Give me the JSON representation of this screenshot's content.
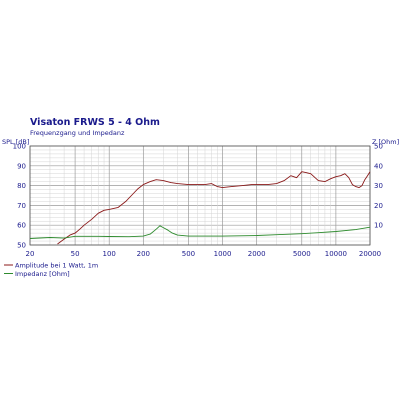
{
  "chart_data": {
    "type": "line",
    "title": "Visaton FRWS 5 - 4 Ohm",
    "subtitle": "Frequenzgang und Impedanz",
    "ylabel_left": "SPL [dB]",
    "ylabel_right": "Z [Ohm]",
    "x_scale": "log",
    "xlim": [
      20,
      20000
    ],
    "ylim_left": [
      50,
      100
    ],
    "ylim_right": [
      0,
      50
    ],
    "x_ticks": [
      20,
      50,
      100,
      200,
      500,
      1000,
      2000,
      5000,
      10000,
      20000
    ],
    "x_tick_labels": [
      "20",
      "50",
      "100",
      "200",
      "500",
      "1000",
      "2000",
      "5000",
      "10000",
      "20000"
    ],
    "y_left_ticks": [
      50,
      60,
      70,
      80,
      90,
      100
    ],
    "y_right_ticks": [
      10,
      20,
      30,
      40,
      50
    ],
    "grid": true,
    "legend_position": "bottom-left",
    "series": [
      {
        "name": "Amplitude bei 1 Watt, 1m",
        "axis": "left",
        "color": "#8b1a1a",
        "x": [
          35,
          40,
          45,
          50,
          55,
          60,
          70,
          80,
          90,
          100,
          120,
          140,
          160,
          180,
          200,
          230,
          260,
          300,
          350,
          400,
          500,
          600,
          700,
          800,
          900,
          1000,
          1200,
          1500,
          1800,
          2000,
          2500,
          3000,
          3500,
          4000,
          4500,
          5000,
          5500,
          6000,
          7000,
          8000,
          9000,
          10000,
          11000,
          12000,
          13000,
          14000,
          15000,
          16000,
          17000,
          18000,
          19000,
          20000
        ],
        "values": [
          50.5,
          53,
          55,
          56,
          58,
          60,
          63,
          66,
          67.5,
          68,
          69,
          72,
          75.5,
          78.5,
          80.5,
          82,
          83,
          82.5,
          81.5,
          81,
          80.5,
          80.5,
          80.5,
          81,
          79.5,
          79,
          79.5,
          80,
          80.5,
          80.5,
          80.5,
          81,
          82.5,
          85,
          84,
          87,
          86.5,
          86,
          82.5,
          82,
          83.5,
          84.5,
          85,
          86,
          84,
          80.5,
          79.5,
          79,
          80,
          83,
          85,
          87
        ]
      },
      {
        "name": "Impedanz [Ohm]",
        "axis": "right",
        "color": "#2e8b2e",
        "x": [
          20,
          30,
          40,
          50,
          60,
          80,
          100,
          150,
          200,
          230,
          260,
          280,
          300,
          330,
          360,
          400,
          500,
          700,
          1000,
          2000,
          3000,
          5000,
          7000,
          10000,
          15000,
          20000
        ],
        "values": [
          3.3,
          3.8,
          3.5,
          4.4,
          4.4,
          4.4,
          4.3,
          4.2,
          4.5,
          5.5,
          8,
          9.7,
          8.8,
          7.5,
          6,
          5,
          4.5,
          4.5,
          4.5,
          4.8,
          5.2,
          5.7,
          6.2,
          6.8,
          7.8,
          9
        ]
      }
    ]
  }
}
